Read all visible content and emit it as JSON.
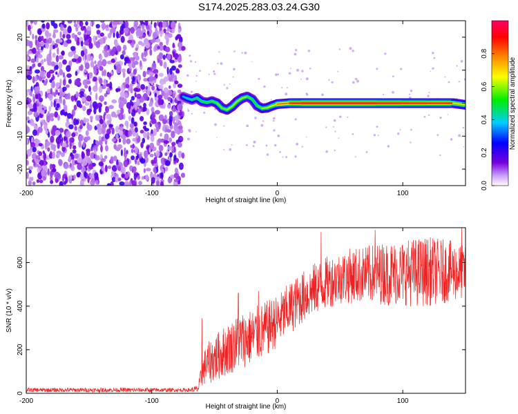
{
  "figure_title": "S174.2025.283.03.24.G30",
  "chart_data": [
    {
      "type": "heatmap",
      "title": "S174.2025.283.03.24.G30",
      "xlabel": "Height of straight line (km)",
      "ylabel": "Frequency (Hz)",
      "xlim": [
        -200,
        150
      ],
      "ylim": [
        -25,
        25
      ],
      "x_ticks": [
        -200,
        -100,
        0,
        100
      ],
      "y_ticks": [
        -20,
        -10,
        0,
        10,
        20
      ],
      "x_tick_labels": [
        "-200",
        "-100",
        "0",
        "100"
      ],
      "y_tick_labels": [
        "-20",
        "-10",
        "0",
        "10",
        "20"
      ],
      "colorbar": {
        "label": "Normalized spectral amplitude",
        "range": [
          0.0,
          1.0
        ],
        "ticks": [
          0.0,
          0.2,
          0.4,
          0.6,
          0.8
        ],
        "tick_labels": [
          "0.0",
          "0.2",
          "0.4",
          "0.6",
          "0.8"
        ],
        "colors": [
          "#ffffff",
          "#7700dd",
          "#0000ff",
          "#00ccff",
          "#00ee00",
          "#ffff00",
          "#ff8800",
          "#ff0000",
          "#ff0066"
        ]
      },
      "noise_region": {
        "x_range": [
          -200,
          -75
        ],
        "freq_range": [
          -25,
          25
        ],
        "typical_amplitude": 0.2
      },
      "ridge": {
        "x": [
          -75,
          -72,
          -68,
          -64,
          -60,
          -56,
          -52,
          -48,
          -44,
          -40,
          -36,
          -32,
          -28,
          -24,
          -20,
          -16,
          -12,
          -8,
          -4,
          0,
          10,
          20,
          40,
          60,
          80,
          100,
          120,
          140,
          150
        ],
        "frequency": [
          2.0,
          1.5,
          1.0,
          1.6,
          0.5,
          0.2,
          0.6,
          0.0,
          -1.5,
          -2.0,
          -1.0,
          0.5,
          1.5,
          2.0,
          1.2,
          -0.8,
          -1.6,
          -1.4,
          -0.8,
          -0.3,
          0.0,
          0.0,
          0.0,
          0.0,
          0.0,
          0.0,
          0.0,
          0.0,
          -0.5
        ],
        "amplitude": [
          0.35,
          0.4,
          0.45,
          0.45,
          0.5,
          0.5,
          0.5,
          0.55,
          0.55,
          0.55,
          0.6,
          0.55,
          0.6,
          0.55,
          0.5,
          0.5,
          0.55,
          0.6,
          0.6,
          0.7,
          0.85,
          0.95,
          0.95,
          0.95,
          0.95,
          0.9,
          0.9,
          0.85,
          0.5
        ]
      }
    },
    {
      "type": "line",
      "title": "",
      "xlabel": "Height of straight line (km)",
      "ylabel": "SNR (10 * v/v)",
      "xlim": [
        -200,
        150
      ],
      "ylim": [
        0,
        760
      ],
      "x_ticks": [
        -200,
        -100,
        0,
        100
      ],
      "y_ticks": [
        0,
        200,
        400,
        600
      ],
      "x_tick_labels": [
        "-200",
        "-100",
        "0",
        "100"
      ],
      "y_tick_labels": [
        "0",
        "200",
        "400",
        "600"
      ],
      "series": [
        {
          "name": "SNR",
          "color": "#ee2222",
          "x": [
            -200,
            -150,
            -100,
            -70,
            -63,
            -60,
            -57,
            -50,
            -40,
            -30,
            -20,
            -10,
            0,
            10,
            20,
            30,
            40,
            50,
            60,
            70,
            80,
            90,
            100,
            110,
            120,
            130,
            140,
            150
          ],
          "mean": [
            15,
            15,
            15,
            15,
            20,
            90,
            130,
            160,
            200,
            240,
            260,
            290,
            330,
            390,
            440,
            480,
            510,
            530,
            540,
            545,
            550,
            550,
            555,
            555,
            560,
            560,
            560,
            555
          ],
          "spread": [
            10,
            10,
            10,
            8,
            20,
            60,
            90,
            110,
            120,
            130,
            130,
            130,
            120,
            120,
            120,
            120,
            120,
            120,
            130,
            130,
            140,
            150,
            150,
            160,
            160,
            150,
            140,
            120
          ],
          "peaks": [
            [
              -60,
              345
            ],
            [
              -31,
              460
            ],
            [
              -15,
              470
            ],
            [
              35,
              740
            ],
            [
              78,
              750
            ],
            [
              147,
              760
            ]
          ]
        }
      ]
    }
  ]
}
